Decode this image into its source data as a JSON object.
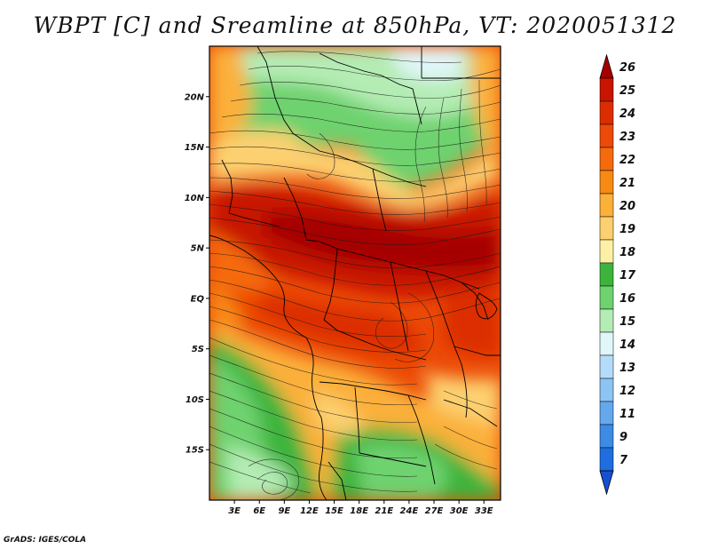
{
  "title": "WBPT [C] and Sreamline at 850hPa, VT: 2020051312",
  "credit": "GrADS: IGES/COLA",
  "map": {
    "lon_range": [
      0,
      35
    ],
    "lat_range": [
      -20,
      25
    ],
    "x_ticks": [
      {
        "value": 3,
        "label": "3E"
      },
      {
        "value": 6,
        "label": "6E"
      },
      {
        "value": 9,
        "label": "9E"
      },
      {
        "value": 12,
        "label": "12E"
      },
      {
        "value": 15,
        "label": "15E"
      },
      {
        "value": 18,
        "label": "18E"
      },
      {
        "value": 21,
        "label": "21E"
      },
      {
        "value": 24,
        "label": "24E"
      },
      {
        "value": 27,
        "label": "27E"
      },
      {
        "value": 30,
        "label": "30E"
      },
      {
        "value": 33,
        "label": "33E"
      }
    ],
    "y_ticks": [
      {
        "value": 20,
        "label": "20N"
      },
      {
        "value": 15,
        "label": "15N"
      },
      {
        "value": 10,
        "label": "10N"
      },
      {
        "value": 5,
        "label": "5N"
      },
      {
        "value": 0,
        "label": "EQ"
      },
      {
        "value": -5,
        "label": "5S"
      },
      {
        "value": -10,
        "label": "10S"
      },
      {
        "value": -15,
        "label": "15S"
      }
    ]
  },
  "colorbar": {
    "levels": [
      {
        "label": "26",
        "color": "#a50000"
      },
      {
        "label": "25",
        "color": "#c81400"
      },
      {
        "label": "24",
        "color": "#dc2d00"
      },
      {
        "label": "23",
        "color": "#ec4a06"
      },
      {
        "label": "22",
        "color": "#f56a0c"
      },
      {
        "label": "21",
        "color": "#f88a14"
      },
      {
        "label": "20",
        "color": "#fbb03a"
      },
      {
        "label": "19",
        "color": "#fcd070"
      },
      {
        "label": "18",
        "color": "#fdf0a6"
      },
      {
        "label": "17",
        "color": "#3cb43c"
      },
      {
        "label": "16",
        "color": "#6ed26e"
      },
      {
        "label": "15",
        "color": "#b4ecb4"
      },
      {
        "label": "14",
        "color": "#e0f6f8"
      },
      {
        "label": "13",
        "color": "#b4dcfa"
      },
      {
        "label": "12",
        "color": "#8cc4f4"
      },
      {
        "label": "11",
        "color": "#64a8ee"
      },
      {
        "label": "9",
        "color": "#3c8ce6"
      },
      {
        "label": "7",
        "color": "#1e6ee0"
      }
    ],
    "below_color": "#1450d2"
  }
}
